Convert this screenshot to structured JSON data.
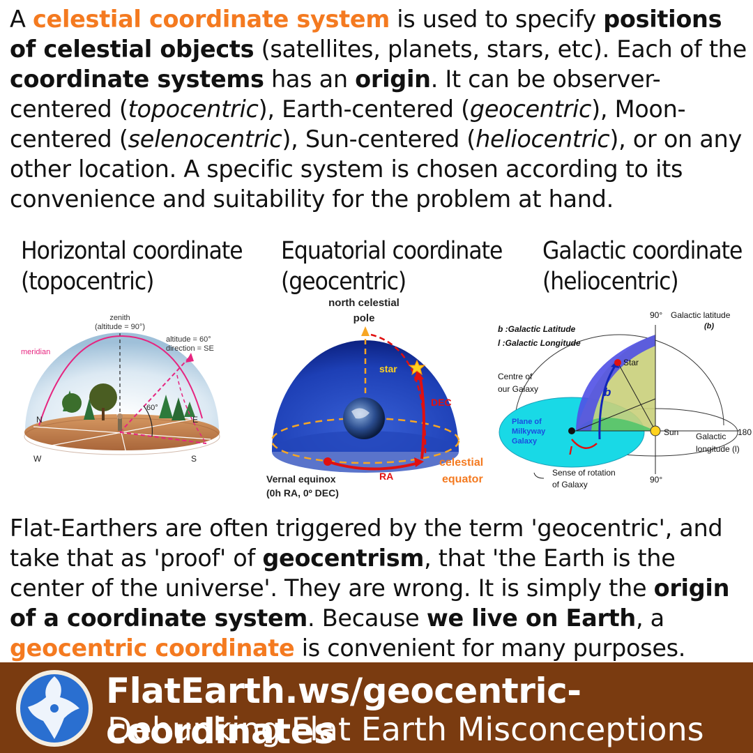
{
  "intro": [
    {
      "t": "A ",
      "s": ""
    },
    {
      "t": "celestial coordinate system",
      "s": "orange"
    },
    {
      "t": " is used to specify ",
      "s": ""
    },
    {
      "t": "positions of celestial objects",
      "s": "b"
    },
    {
      "t": " (satellites, planets, stars, etc). Each of the ",
      "s": ""
    },
    {
      "t": "coordinate systems",
      "s": "b"
    },
    {
      "t": " has an ",
      "s": ""
    },
    {
      "t": "origin",
      "s": "b"
    },
    {
      "t": ". It can be observer-centered (",
      "s": ""
    },
    {
      "t": "topocentric",
      "s": "i"
    },
    {
      "t": "), Earth-centered (",
      "s": ""
    },
    {
      "t": "geocentric",
      "s": "i"
    },
    {
      "t": "), Moon-centered (",
      "s": ""
    },
    {
      "t": "selenocentric",
      "s": "i"
    },
    {
      "t": "), Sun-centered (",
      "s": ""
    },
    {
      "t": "heliocentric",
      "s": "i"
    },
    {
      "t": "), or on any other location. A specific system is chosen according to its convenience and suitability for the problem at hand.",
      "s": ""
    }
  ],
  "diagrams": {
    "horizontal": {
      "title_line1": "Horizontal coordinate",
      "title_line2": "(topocentric)",
      "zenith": "zenith",
      "zenith_alt": "(altitude = 90°)",
      "meridian": "meridian",
      "alt_label": "altitude = 60°",
      "dir_label": "direction = SE",
      "angle": "60°",
      "n": "N",
      "e": "E",
      "s": "S",
      "w": "W"
    },
    "equatorial": {
      "title_line1": "Equatorial coordinate",
      "title_line2": "(geocentric)",
      "pole_line1": "north celestial",
      "pole_line2": "pole",
      "star": "star",
      "dec": "DEC",
      "ra": "RA",
      "equator_line1": "celestial",
      "equator_line2": "equator",
      "vernal_line1": "Vernal equinox",
      "vernal_line2": "(0h RA, 0º DEC)"
    },
    "galactic": {
      "title_line1": "Galactic coordinate",
      "title_line2": "(heliocentric)",
      "top_deg": "90°",
      "lat_label": "Galactic latitude",
      "lat_sym": "(b)",
      "legend_b": "b :Galactic Latitude",
      "legend_l": "l :Galactic Longitude",
      "star": "Star",
      "centre_line1": "Centre of",
      "centre_line2": "our Galaxy",
      "b": "b",
      "l": "l",
      "plane_line1": "Plane of",
      "plane_line2": "Milkyway",
      "plane_line3": "Galaxy",
      "sun": "Sun",
      "lon_line1": "Galactic",
      "lon_line2": "longitude (l)",
      "deg180": "180",
      "bottom_deg": "90°",
      "rot_line1": "Sense of rotation",
      "rot_line2": "of Galaxy"
    }
  },
  "outro": [
    {
      "t": "Flat-Earthers are often triggered by the term 'geocentric', and take that as 'proof' of ",
      "s": ""
    },
    {
      "t": "geocentrism",
      "s": "b"
    },
    {
      "t": ", that 'the Earth is the center of the universe'. They are wrong. It is simply the ",
      "s": ""
    },
    {
      "t": "origin of a coordinate system",
      "s": "b"
    },
    {
      "t": ". Because ",
      "s": ""
    },
    {
      "t": "we live on Earth",
      "s": "b"
    },
    {
      "t": ", a ",
      "s": ""
    },
    {
      "t": "geocentric coordinate",
      "s": "orange"
    },
    {
      "t": " is convenient for many purposes.",
      "s": ""
    }
  ],
  "footer": {
    "url": "FlatEarth.ws/geocentric-coordinates",
    "tagline": "Debunking Flat Earth Misconceptions",
    "logo_icon": "globe-map-icon"
  },
  "colors": {
    "accent_orange": "#f47a20",
    "footer_brown": "#7a3b10"
  }
}
